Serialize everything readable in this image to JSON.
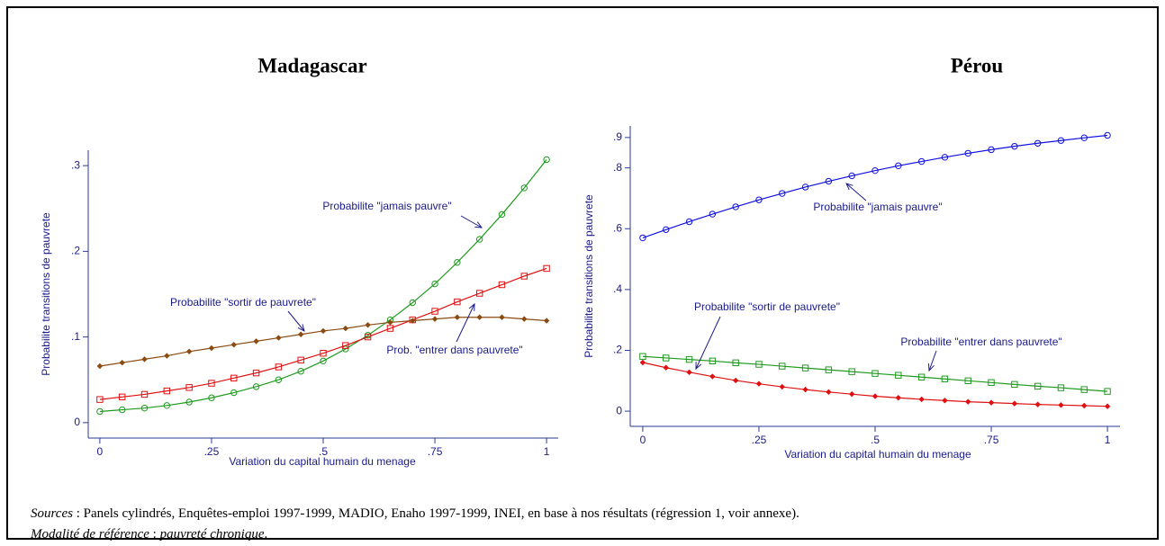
{
  "chart_data": [
    {
      "type": "line",
      "title": "Madagascar",
      "x_label": "Variation du capital humain du menage",
      "y_label": "Probabilite transitions de pauvrete",
      "x": [
        0,
        0.05,
        0.1,
        0.15,
        0.2,
        0.25,
        0.3,
        0.35,
        0.4,
        0.45,
        0.5,
        0.55,
        0.6,
        0.65,
        0.7,
        0.75,
        0.8,
        0.85,
        0.9,
        0.95,
        1
      ],
      "series": [
        {
          "name": "Probabilite \"jamais pauvre\"",
          "color": "#1e9a1e",
          "marker": "circle",
          "values": [
            0.013,
            0.015,
            0.017,
            0.02,
            0.024,
            0.029,
            0.035,
            0.042,
            0.05,
            0.06,
            0.072,
            0.086,
            0.102,
            0.12,
            0.14,
            0.162,
            0.187,
            0.214,
            0.243,
            0.274,
            0.307
          ]
        },
        {
          "name": "Prob. \"entrer dans pauvrete\"",
          "color": "#e01010",
          "marker": "square",
          "values": [
            0.027,
            0.03,
            0.033,
            0.037,
            0.041,
            0.046,
            0.052,
            0.058,
            0.065,
            0.073,
            0.081,
            0.09,
            0.1,
            0.11,
            0.12,
            0.13,
            0.141,
            0.151,
            0.161,
            0.171,
            0.18
          ]
        },
        {
          "name": "Probabilite \"sortir de pauvrete\"",
          "color": "#8b4a10",
          "marker": "diamond",
          "values": [
            0.066,
            0.07,
            0.074,
            0.078,
            0.083,
            0.087,
            0.091,
            0.095,
            0.099,
            0.103,
            0.107,
            0.11,
            0.114,
            0.117,
            0.119,
            0.121,
            0.123,
            0.123,
            0.123,
            0.121,
            0.119
          ]
        }
      ],
      "xlim": [
        -0.026,
        1.026
      ],
      "ylim": [
        -0.018,
        0.318
      ],
      "xticks": [
        0,
        {
          "value": 0.25,
          "label": ".25"
        },
        {
          "value": 0.5,
          "label": ".5"
        },
        {
          "value": 0.75,
          "label": ".75"
        },
        1
      ],
      "yticks": [
        0,
        {
          "value": 0.1,
          "label": ".1"
        },
        {
          "value": 0.2,
          "label": ".2"
        },
        {
          "value": 0.3,
          "label": ".3"
        }
      ],
      "grid": false
    },
    {
      "type": "line",
      "title": "Pérou",
      "x_label": "Variation du capital humain du menage",
      "y_label": "Probabilite transitions de pauvrete",
      "x": [
        0,
        0.05,
        0.1,
        0.15,
        0.2,
        0.25,
        0.3,
        0.35,
        0.4,
        0.45,
        0.5,
        0.55,
        0.6,
        0.65,
        0.7,
        0.75,
        0.8,
        0.85,
        0.9,
        0.95,
        1
      ],
      "series": [
        {
          "name": "Probabilite \"jamais pauvre\"",
          "color": "#1010e0",
          "marker": "circle",
          "values": [
            0.57,
            0.597,
            0.623,
            0.648,
            0.672,
            0.695,
            0.716,
            0.737,
            0.756,
            0.774,
            0.791,
            0.807,
            0.821,
            0.835,
            0.848,
            0.86,
            0.871,
            0.881,
            0.89,
            0.899,
            0.907
          ]
        },
        {
          "name": "Probabilite \"sortir de pauvrete\"",
          "color": "#e01010",
          "marker": "diamond",
          "values": [
            0.16,
            0.143,
            0.128,
            0.114,
            0.101,
            0.09,
            0.08,
            0.071,
            0.063,
            0.056,
            0.049,
            0.044,
            0.039,
            0.035,
            0.031,
            0.028,
            0.025,
            0.022,
            0.02,
            0.018,
            0.016
          ]
        },
        {
          "name": "Probabilite \"entrer dans pauvrete\"",
          "color": "#1e9a1e",
          "marker": "square",
          "values": [
            0.18,
            0.175,
            0.17,
            0.165,
            0.159,
            0.154,
            0.148,
            0.142,
            0.136,
            0.13,
            0.124,
            0.118,
            0.112,
            0.106,
            0.1,
            0.094,
            0.088,
            0.082,
            0.077,
            0.071,
            0.065
          ]
        }
      ],
      "xlim": [
        -0.027,
        1.027
      ],
      "ylim": [
        -0.05,
        0.938
      ],
      "xticks": [
        0,
        {
          "value": 0.25,
          "label": ".25"
        },
        {
          "value": 0.5,
          "label": ".5"
        },
        {
          "value": 0.75,
          "label": ".75"
        },
        1
      ],
      "yticks": [
        0,
        {
          "value": 0.2,
          "label": ".2"
        },
        {
          "value": 0.4,
          "label": ".4"
        },
        {
          "value": 0.6,
          "label": ".6"
        },
        {
          "value": 0.8,
          "label": ".8"
        },
        {
          "value": 0.9,
          "label": ".9"
        }
      ],
      "grid": false
    }
  ],
  "caption": {
    "sources_label": "Sources",
    "sources_text": " : Panels cylindrés, Enquêtes-emploi 1997-1999, MADIO, Enaho 1997-1999, INEI, en base à nos résultats (régression 1, voir annexe).",
    "reference_label": "Modalité de référence",
    "reference_sep": " : ",
    "reference_value": "pauvreté chronique",
    "reference_end": "."
  }
}
